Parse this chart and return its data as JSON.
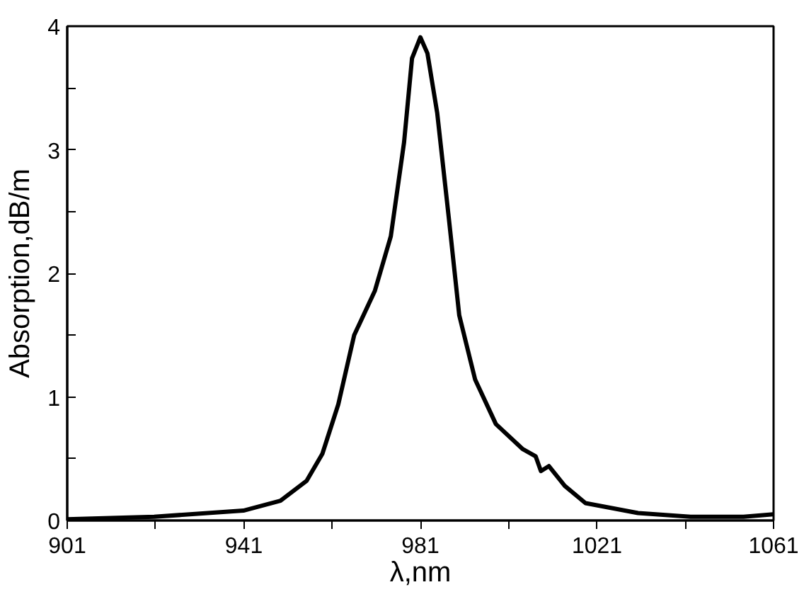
{
  "chart_data": {
    "type": "line",
    "xlabel": "λ,nm",
    "ylabel": "Absorption,dB/m",
    "x": [
      901,
      920.7,
      940.9,
      949.3,
      955.2,
      958.8,
      962.4,
      966,
      970.7,
      974.3,
      977.3,
      979.1,
      981,
      982.6,
      984.8,
      987.4,
      989.8,
      993.4,
      998.1,
      1004.1,
      1007.1,
      1008.3,
      1010.1,
      1013.7,
      1018.4,
      1030.3,
      1042.2,
      1054.2,
      1061
    ],
    "series": [
      {
        "color": "#000000",
        "values": [
          0.01,
          0.03,
          0.08,
          0.16,
          0.32,
          0.54,
          0.94,
          1.5,
          1.86,
          2.3,
          3.06,
          3.74,
          3.91,
          3.78,
          3.3,
          2.46,
          1.66,
          1.14,
          0.78,
          0.58,
          0.52,
          0.4,
          0.44,
          0.28,
          0.14,
          0.06,
          0.03,
          0.03,
          0.05
        ]
      }
    ],
    "xlim": [
      901,
      1061
    ],
    "ylim": [
      0,
      4
    ],
    "xticks": [
      901,
      {
        "value": 921,
        "label": null
      },
      941,
      {
        "value": 961,
        "label": null
      },
      981,
      {
        "value": 1001,
        "label": null
      },
      1021,
      {
        "value": 1041,
        "label": null
      },
      1061
    ],
    "yticks": [
      0,
      {
        "value": 0.5,
        "label": null
      },
      1,
      {
        "value": 1.5,
        "label": null
      },
      2,
      {
        "value": 2.5,
        "label": null
      },
      3,
      {
        "value": 3.5,
        "label": null
      },
      4
    ],
    "grid": false,
    "marker": "none",
    "line_style": "solid"
  }
}
